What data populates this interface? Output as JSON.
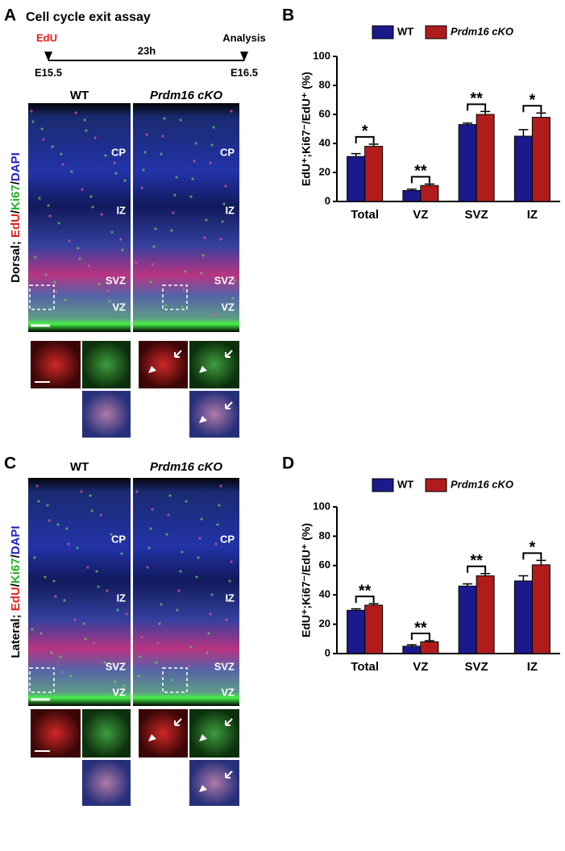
{
  "panel_labels": [
    "A",
    "B",
    "C",
    "D"
  ],
  "timeline": {
    "title": "Cell cycle exit assay",
    "pulse": "EdU",
    "duration": "23h",
    "endpoint": "Analysis",
    "start": "E15.5",
    "end": "E16.5"
  },
  "image_panels": [
    {
      "row_label": [
        {
          "text": "Dorsal; ",
          "color": "#000000"
        },
        {
          "text": "EdU",
          "color": "#e0201e"
        },
        {
          "text": "/",
          "color": "#000000"
        },
        {
          "text": "Ki67",
          "color": "#21b021"
        },
        {
          "text": "/",
          "color": "#000000"
        },
        {
          "text": "DAPI",
          "color": "#1f24c8"
        }
      ],
      "columns": [
        "WT",
        "Prdm16 cKO"
      ],
      "regions": [
        "CP",
        "IZ",
        "SVZ",
        "VZ"
      ]
    },
    {
      "row_label": [
        {
          "text": "Lateral; ",
          "color": "#000000"
        },
        {
          "text": "EdU",
          "color": "#e0201e"
        },
        {
          "text": "/",
          "color": "#000000"
        },
        {
          "text": "Ki67",
          "color": "#21b021"
        },
        {
          "text": "/",
          "color": "#000000"
        },
        {
          "text": "DAPI",
          "color": "#1f24c8"
        }
      ],
      "columns": [
        "WT",
        "Prdm16 cKO"
      ],
      "regions": [
        "CP",
        "IZ",
        "SVZ",
        "VZ"
      ]
    }
  ],
  "chart_data": [
    {
      "type": "bar",
      "y_label": "EdU⁺;Ki67⁻/EdU⁺ (%)",
      "categories": [
        "Total",
        "VZ",
        "SVZ",
        "IZ"
      ],
      "series": [
        {
          "name": "WT",
          "color": "#1a1a8c",
          "values": [
            31,
            7.5,
            53,
            45
          ],
          "errors": [
            2,
            1,
            1,
            4.5
          ]
        },
        {
          "name": "Prdm16 cKO",
          "color": "#b01c1c",
          "values": [
            38,
            11,
            60,
            58
          ],
          "errors": [
            1.5,
            1,
            2,
            3
          ]
        }
      ],
      "annotations": [
        "*",
        "**",
        "**",
        "*"
      ],
      "ylim": [
        0,
        100
      ],
      "yticks": [
        0,
        20,
        40,
        60,
        80,
        100
      ]
    },
    {
      "type": "bar",
      "y_label": "EdU⁺;Ki67⁻/EdU⁺ (%)",
      "categories": [
        "Total",
        "VZ",
        "SVZ",
        "IZ"
      ],
      "series": [
        {
          "name": "WT",
          "color": "#1a1a8c",
          "values": [
            29.5,
            5,
            46,
            49.5
          ],
          "errors": [
            1,
            1,
            1.5,
            3.5
          ]
        },
        {
          "name": "Prdm16 cKO",
          "color": "#b01c1c",
          "values": [
            33,
            8,
            53,
            60.5
          ],
          "errors": [
            1,
            0.8,
            1.5,
            3
          ]
        }
      ],
      "annotations": [
        "**",
        "**",
        "**",
        "*"
      ],
      "ylim": [
        0,
        100
      ],
      "yticks": [
        0,
        20,
        40,
        60,
        80,
        100
      ]
    }
  ]
}
